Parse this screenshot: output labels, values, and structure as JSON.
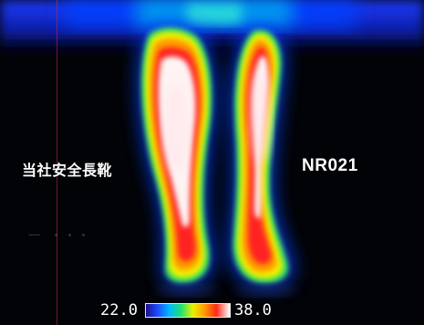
{
  "labels": {
    "left": "当社安全長靴",
    "right": "NR021"
  },
  "scale": {
    "min": "22.0",
    "max": "38.0"
  },
  "colors": {
    "background": "#020306",
    "cold": "#1a1090",
    "mid": "#e8f000",
    "hot": "#ff2a18",
    "hottest": "#ffffff"
  }
}
